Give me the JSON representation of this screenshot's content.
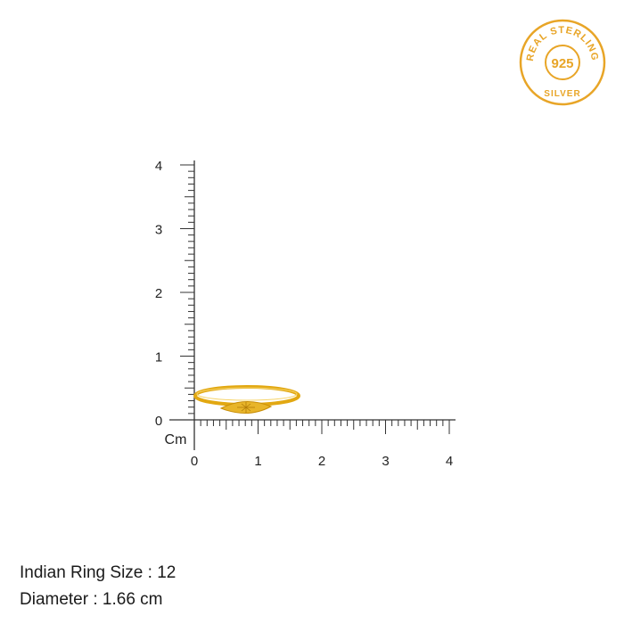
{
  "badge": {
    "top_text": "REAL STERLING",
    "center_text": "925",
    "bottom_text": "SILVER",
    "color": "#E8A527"
  },
  "ruler": {
    "unit_label": "Cm",
    "x_labels": [
      "0",
      "1",
      "2",
      "3",
      "4"
    ],
    "y_labels": [
      "0",
      "1",
      "2",
      "3",
      "4"
    ],
    "color": "#333333"
  },
  "ring": {
    "color": "#E2A812",
    "width_cm": 1.66
  },
  "details": {
    "ring_size": "Indian Ring Size : 12",
    "diameter": "Diameter : 1.66 cm"
  }
}
